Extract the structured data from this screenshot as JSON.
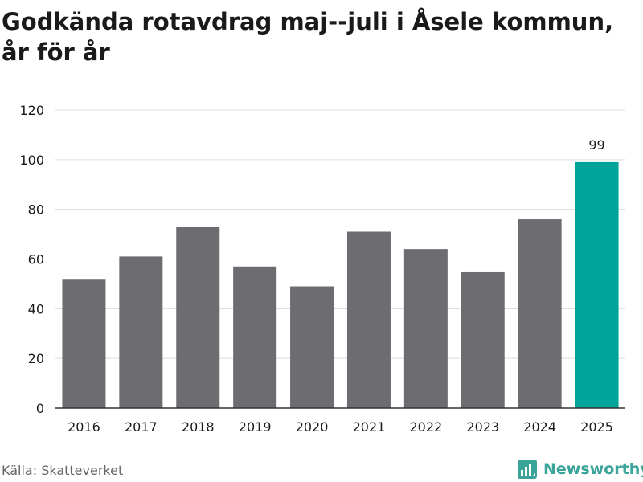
{
  "title": "Godkända rotavdrag maj--juli i Åsele kommun, år för år",
  "source": "Källa: Skatteverket",
  "brand": {
    "name": "Newsworthy",
    "icon": "newsworthy-logo-icon"
  },
  "colors": {
    "bar": "#6d6c71",
    "highlight": "#00a499",
    "grid": "#dcdcdc",
    "axis": "#333333"
  },
  "chart_data": {
    "type": "bar",
    "title": "Godkända rotavdrag maj--juli i Åsele kommun, år för år",
    "xlabel": "",
    "ylabel": "",
    "categories": [
      "2016",
      "2017",
      "2018",
      "2019",
      "2020",
      "2021",
      "2022",
      "2023",
      "2024",
      "2025"
    ],
    "values": [
      52,
      61,
      73,
      57,
      49,
      71,
      64,
      55,
      76,
      99
    ],
    "highlight": [
      false,
      false,
      false,
      false,
      false,
      false,
      false,
      false,
      false,
      true
    ],
    "data_labels": [
      "",
      "",
      "",
      "",
      "",
      "",
      "",
      "",
      "",
      "99"
    ],
    "ylim": [
      0,
      120
    ],
    "yticks": [
      0,
      20,
      40,
      60,
      80,
      100,
      120
    ],
    "grid": true,
    "legend": "none"
  }
}
